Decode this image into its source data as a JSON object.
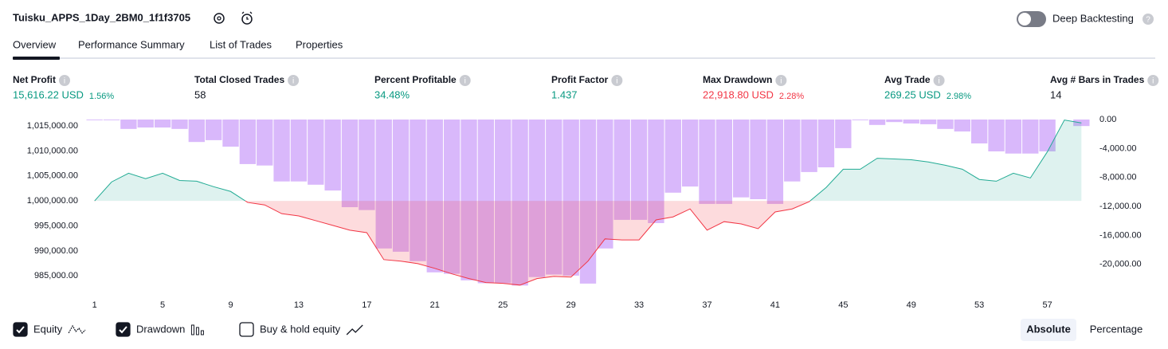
{
  "header": {
    "title": "Tuisku_APPS_1Day_2BM0_1f1f3705",
    "toggle_label": "Deep Backtesting"
  },
  "tabs": [
    "Overview",
    "Performance Summary",
    "List of Trades",
    "Properties"
  ],
  "metrics": [
    {
      "label": "Net Profit",
      "value": "15,616.22 USD",
      "pct": "1.56%",
      "color": "#089981"
    },
    {
      "label": "Total Closed Trades",
      "value": "58",
      "color": "#131722"
    },
    {
      "label": "Percent Profitable",
      "value": "34.48%",
      "color": "#089981"
    },
    {
      "label": "Profit Factor",
      "value": "1.437",
      "color": "#089981"
    },
    {
      "label": "Max Drawdown",
      "value": "22,918.80 USD",
      "pct": "2.28%",
      "color": "#f23645"
    },
    {
      "label": "Avg Trade",
      "value": "269.25 USD",
      "pct": "2.98%",
      "color": "#089981"
    },
    {
      "label": "Avg # Bars in Trades",
      "value": "14",
      "color": "#131722"
    }
  ],
  "chart_data": {
    "type": "combo",
    "x": [
      1,
      2,
      3,
      4,
      5,
      6,
      7,
      8,
      9,
      10,
      11,
      12,
      13,
      14,
      15,
      16,
      17,
      18,
      19,
      20,
      21,
      22,
      23,
      24,
      25,
      26,
      27,
      28,
      29,
      30,
      31,
      32,
      33,
      34,
      35,
      36,
      37,
      38,
      39,
      40,
      41,
      42,
      43,
      44,
      45,
      46,
      47,
      48,
      49,
      50,
      51,
      52,
      53,
      54,
      55,
      56,
      57,
      58,
      59
    ],
    "xlim": [
      0.5,
      59.5
    ],
    "xticks": [
      1,
      5,
      9,
      13,
      17,
      21,
      25,
      29,
      33,
      37,
      41,
      45,
      49,
      53,
      57
    ],
    "ylim": [
      982800,
      1016300
    ],
    "yticks": [
      {
        "value": 985000,
        "label": "985,000.00"
      },
      {
        "value": 990000,
        "label": "990,000.00"
      },
      {
        "value": 995000,
        "label": "995,000.00"
      },
      {
        "value": 1000000,
        "label": "1,000,000.00"
      },
      {
        "value": 1005000,
        "label": "1,005,000.00"
      },
      {
        "value": 1010000,
        "label": "1,010,000.00"
      },
      {
        "value": 1015000,
        "label": "1,015,000.00"
      }
    ],
    "y2lim": [
      -23100,
      0
    ],
    "y2ticks": [
      {
        "value": -20000,
        "label": "-20,000.00"
      },
      {
        "value": -16000,
        "label": "-16,000.00"
      },
      {
        "value": -12000,
        "label": "-12,000.00"
      },
      {
        "value": -8000,
        "label": "-8,000.00"
      },
      {
        "value": -4000,
        "label": "-4,000.00"
      },
      {
        "value": 0,
        "label": "0.00"
      }
    ],
    "series": [
      {
        "name": "Equity",
        "type": "line",
        "color": "#22ab94",
        "color_below": "#f23645",
        "checked": true,
        "values": [
          1000000,
          1003800,
          1005550,
          1004450,
          1005550,
          1004100,
          1003950,
          1002850,
          1001900,
          999700,
          999200,
          997450,
          997000,
          996050,
          995100,
          994150,
          993650,
          988250,
          987950,
          987450,
          986500,
          985400,
          984450,
          983650,
          983500,
          983150,
          984450,
          984900,
          984750,
          987950,
          992400,
          992200,
          992200,
          996200,
          996800,
          998400,
          994150,
          995850,
          995400,
          994450,
          997800,
          998400,
          999850,
          1002700,
          1006350,
          1006350,
          1008550,
          1008400,
          1008250,
          1007800,
          1007150,
          1006350,
          1004300,
          1003950,
          1005550,
          1004600,
          1009850,
          1016200,
          1015616
        ]
      },
      {
        "name": "Drawdown",
        "type": "bar",
        "axis": "y2",
        "color": "#d9b8fb",
        "checked": true,
        "values": [
          -100,
          -100,
          -1300,
          -1100,
          -1100,
          -1300,
          -3100,
          -2850,
          -3750,
          -6150,
          -6350,
          -8550,
          -8550,
          -9000,
          -9800,
          -12100,
          -12500,
          -17800,
          -18250,
          -19550,
          -21100,
          -21300,
          -22200,
          -22600,
          -22600,
          -22918.8,
          -21750,
          -21400,
          -21550,
          -22650,
          -17800,
          -13850,
          -13850,
          -14300,
          -10100,
          -9250,
          -11650,
          -11650,
          -10750,
          -11000,
          -11650,
          -8550,
          -7250,
          -6600,
          -3950,
          -100,
          -750,
          -350,
          -550,
          -650,
          -1300,
          -1650,
          -3300,
          -4400,
          -4700,
          -4700,
          -4400,
          0,
          -900
        ]
      },
      {
        "name": "Buy & hold equity",
        "checked": false
      }
    ]
  },
  "buttons": [
    "Absolute",
    "Percentage"
  ]
}
